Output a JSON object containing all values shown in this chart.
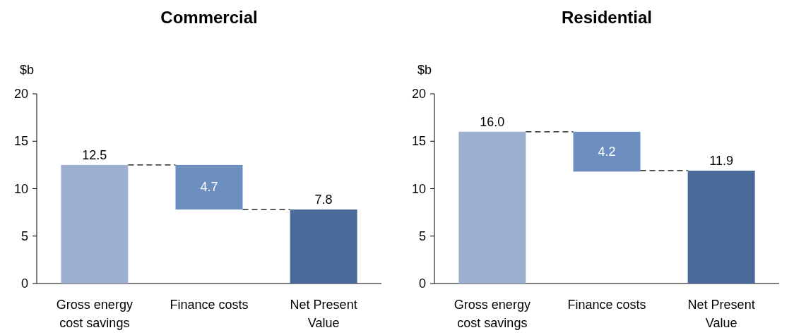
{
  "chart_data": [
    {
      "type": "bar",
      "title": "Commercial",
      "ylabel": "$b",
      "categories": [
        "Gross energy cost savings",
        "Finance costs",
        "Net Present Value"
      ],
      "values": [
        12.5,
        4.7,
        7.8
      ],
      "base": [
        0,
        7.8,
        0
      ],
      "colors": [
        "#9db0cf",
        "#6d8fbf",
        "#4a6a9a"
      ],
      "value_labels": [
        "12.5",
        "4.7",
        "7.8"
      ],
      "ylim": [
        0,
        20
      ],
      "yticks": [
        0,
        5,
        10,
        15,
        20
      ]
    },
    {
      "type": "bar",
      "title": "Residential",
      "ylabel": "$b",
      "categories": [
        "Gross energy cost savings",
        "Finance costs",
        "Net Present Value"
      ],
      "values": [
        16.0,
        4.2,
        11.9
      ],
      "base": [
        0,
        11.8,
        0
      ],
      "colors": [
        "#9db0cf",
        "#6d8fbf",
        "#4a6a9a"
      ],
      "value_labels": [
        "16.0",
        "4.2",
        "11.9"
      ],
      "ylim": [
        0,
        20
      ],
      "yticks": [
        0,
        5,
        10,
        15,
        20
      ]
    }
  ]
}
